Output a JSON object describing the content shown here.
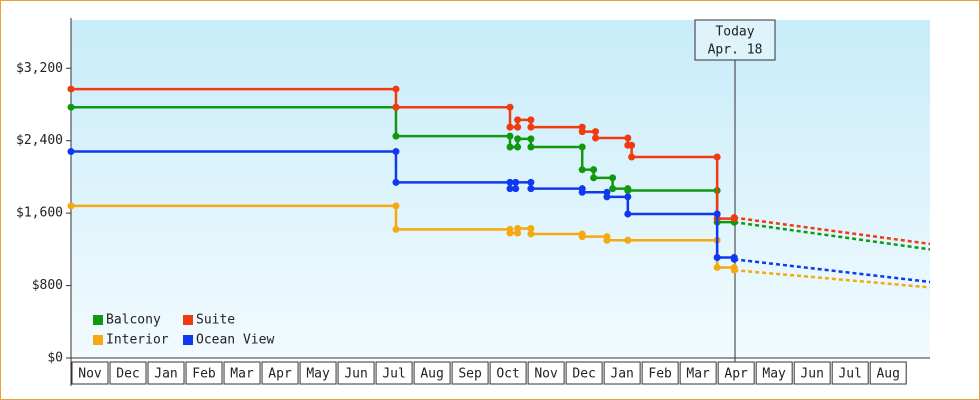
{
  "chart_data": {
    "type": "step_line",
    "categories": [
      "Nov",
      "Dec",
      "Jan",
      "Feb",
      "Mar",
      "Apr",
      "May",
      "Jun",
      "Jul",
      "Aug",
      "Sep",
      "Oct",
      "Nov",
      "Dec",
      "Jan",
      "Feb",
      "Mar",
      "Apr",
      "May",
      "Jun",
      "Jul",
      "Aug"
    ],
    "xlim": [
      0,
      22.6
    ],
    "ylim": [
      0,
      3733
    ],
    "yticks": [
      {
        "value": 0,
        "label": "$0"
      },
      {
        "value": 800,
        "label": "$800"
      },
      {
        "value": 1600,
        "label": "$1,600"
      },
      {
        "value": 2400,
        "label": "$2,400"
      },
      {
        "value": 3200,
        "label": "$3,200"
      }
    ],
    "series": [
      {
        "name": "Balcony",
        "color": "#109910",
        "x": [
          0,
          8.55,
          11.55,
          11.75,
          12.1,
          13.45,
          13.75,
          14.25,
          14.65,
          17.0,
          17.45
        ],
        "values": [
          2770,
          2450,
          2330,
          2420,
          2330,
          2080,
          1990,
          1870,
          1850,
          1500,
          1500
        ],
        "forecast_x": [
          17.45,
          22.6
        ],
        "forecast_values": [
          1500,
          1200
        ]
      },
      {
        "name": "Suite",
        "color": "#f03a10",
        "x": [
          0,
          8.55,
          11.55,
          11.75,
          12.1,
          13.45,
          13.8,
          14.65,
          14.75,
          17.0,
          17.45
        ],
        "values": [
          2970,
          2770,
          2550,
          2630,
          2550,
          2500,
          2430,
          2350,
          2220,
          1540,
          1550
        ],
        "forecast_x": [
          17.45,
          22.6
        ],
        "forecast_values": [
          1550,
          1260
        ]
      },
      {
        "name": "Interior",
        "color": "#f5a810",
        "x": [
          0,
          8.55,
          11.55,
          11.75,
          12.1,
          13.45,
          14.1,
          14.65,
          17.0,
          17.45
        ],
        "values": [
          1680,
          1420,
          1380,
          1430,
          1370,
          1340,
          1300,
          1300,
          1000,
          970
        ],
        "forecast_x": [
          17.45,
          22.6
        ],
        "forecast_values": [
          970,
          780
        ]
      },
      {
        "name": "Ocean View",
        "color": "#1038f0",
        "x": [
          0,
          8.55,
          11.55,
          11.7,
          12.1,
          13.45,
          14.1,
          14.65,
          17.0,
          17.45
        ],
        "values": [
          2280,
          1940,
          1870,
          1940,
          1870,
          1830,
          1780,
          1590,
          1110,
          1090
        ],
        "forecast_x": [
          17.45,
          22.6
        ],
        "forecast_values": [
          1090,
          840
        ]
      }
    ],
    "today": {
      "x": 17.47,
      "label_lines": [
        "Today",
        "Apr. 18"
      ]
    }
  }
}
